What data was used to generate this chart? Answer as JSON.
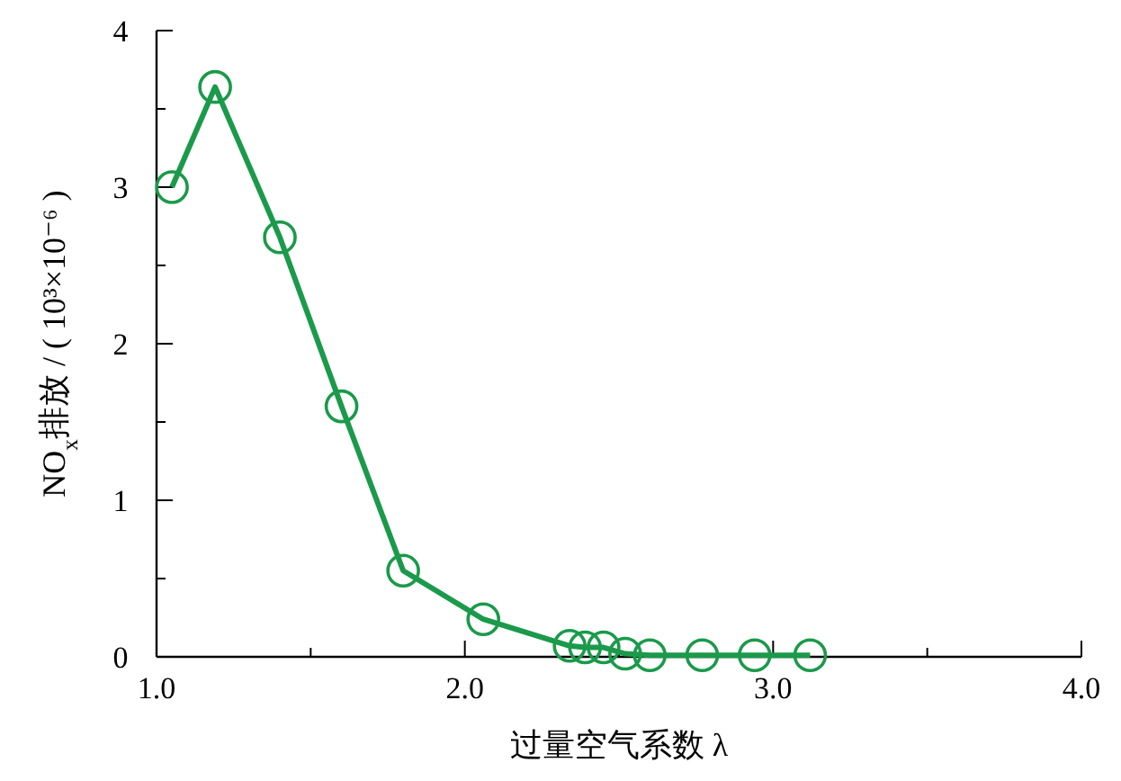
{
  "chart_data": {
    "type": "line",
    "xlabel": "过量空气系数 λ",
    "ylabel": "NO$_{x}$排放 / ( 10³×10⁻⁶ )",
    "x": [
      1.05,
      1.19,
      1.4,
      1.6,
      1.8,
      2.06,
      2.34,
      2.39,
      2.45,
      2.52,
      2.6,
      2.77,
      2.94,
      3.12
    ],
    "series": [
      {
        "color": "#1a9a4a",
        "values": [
          3.0,
          3.64,
          2.68,
          1.6,
          0.55,
          0.24,
          0.07,
          0.06,
          0.06,
          0.02,
          0.01,
          0.01,
          0.01,
          0.01
        ]
      }
    ],
    "xlim": [
      1.0,
      4.0
    ],
    "xticks": [
      {
        "value": 1.0,
        "label": "1.0"
      },
      {
        "value": 1.5,
        "label": null
      },
      {
        "value": 2.0,
        "label": "2.0"
      },
      {
        "value": 2.5,
        "label": null
      },
      {
        "value": 3.0,
        "label": "3.0"
      },
      {
        "value": 3.5,
        "label": null
      },
      {
        "value": 4.0,
        "label": "4.0"
      }
    ],
    "ylim": [
      0,
      4
    ],
    "yticks": [
      0,
      {
        "value": 0.5,
        "label": null
      },
      1,
      {
        "value": 1.5,
        "label": null
      },
      2,
      {
        "value": 2.5,
        "label": null
      },
      3,
      {
        "value": 3.5,
        "label": null
      },
      4
    ],
    "marker": "circle",
    "line_style": "solid"
  }
}
